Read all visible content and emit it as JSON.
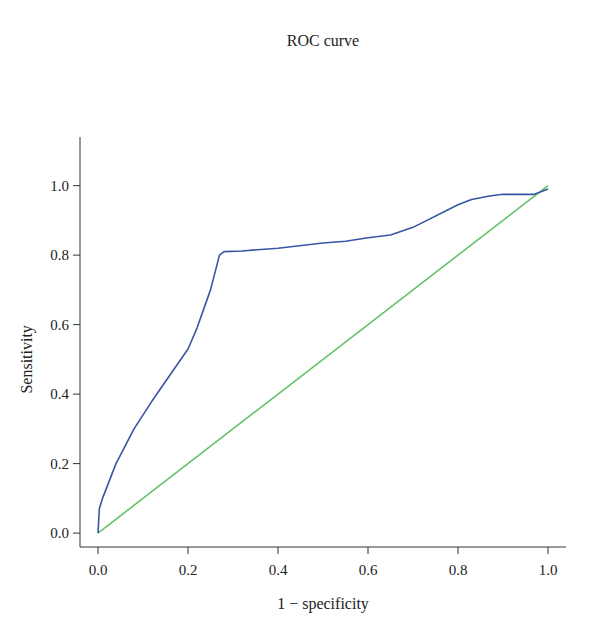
{
  "chart_data": {
    "type": "line",
    "title": "ROC curve",
    "xlabel": "1 − specificity",
    "ylabel": "Sensitivity",
    "grid": false,
    "xlim": [
      -0.04,
      1.04
    ],
    "ylim": [
      -0.04,
      1.14
    ],
    "xticks": [
      {
        "value": 0,
        "label": "0.0"
      },
      0.2,
      0.4,
      0.6,
      0.8,
      {
        "value": 1,
        "label": "1.0"
      }
    ],
    "yticks": [
      {
        "value": 0,
        "label": "0.0"
      },
      0.2,
      0.4,
      0.6,
      0.8,
      {
        "value": 1,
        "label": "1.0"
      }
    ],
    "series": [
      {
        "color": "#3a54a4",
        "x": [
          0,
          0.003,
          0.01,
          0.04,
          0.08,
          0.12,
          0.2,
          0.22,
          0.25,
          0.27,
          0.28,
          0.32,
          0.4,
          0.5,
          0.55,
          0.6,
          0.65,
          0.7,
          0.8,
          0.83,
          0.87,
          0.9,
          0.97,
          1
        ],
        "values": [
          0,
          0.07,
          0.1,
          0.2,
          0.3,
          0.38,
          0.53,
          0.59,
          0.7,
          0.8,
          0.81,
          0.812,
          0.82,
          0.835,
          0.84,
          0.85,
          0.858,
          0.88,
          0.945,
          0.96,
          0.97,
          0.975,
          0.975,
          0.99
        ]
      },
      {
        "color": "#66c266",
        "x": [
          0,
          1
        ],
        "values": [
          0,
          1
        ]
      }
    ]
  }
}
